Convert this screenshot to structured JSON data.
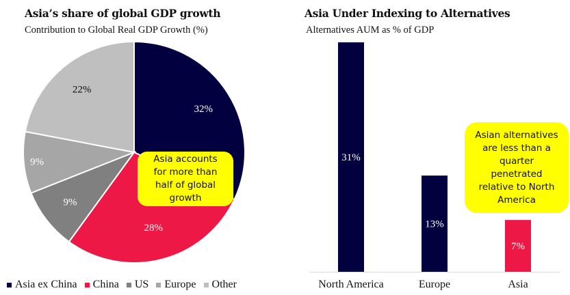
{
  "chart_data": [
    {
      "type": "pie",
      "title": "Asia’s share of global GDP growth",
      "subtitle": "Contribution to Global Real GDP Growth (%)",
      "categories": [
        "Asia ex China",
        "China",
        "US",
        "Europe",
        "Other"
      ],
      "values": [
        32,
        28,
        9,
        9,
        22
      ],
      "labels": [
        "32%",
        "28%",
        "9%",
        "9%",
        "22%"
      ],
      "colors": [
        "#03003f",
        "#ee1846",
        "#808080",
        "#a6a6a6",
        "#bfbfbf"
      ],
      "label_colors": [
        "#ffffff",
        "#ffffff",
        "#ffffff",
        "#ffffff",
        "#111111"
      ],
      "start": "12 o'clock, clockwise",
      "legend": "bottom",
      "annotation": "Asia accounts for more than half of global growth"
    },
    {
      "type": "bar",
      "title": "Asia Under Indexing to Alternatives",
      "subtitle": "Alternatives AUM as % of GDP",
      "categories": [
        "North America",
        "Europe",
        "Asia"
      ],
      "values": [
        31,
        13,
        7
      ],
      "labels": [
        "31%",
        "13%",
        "7%"
      ],
      "colors": [
        "#03003f",
        "#03003f",
        "#ee1846"
      ],
      "ylim": [
        0,
        31
      ],
      "grid": false,
      "annotation": "Asian alternatives are less than a quarter penetrated relative to North America"
    }
  ],
  "callouts": {
    "pie": [
      "Asia accounts",
      "for more than",
      "half of global",
      "growth"
    ],
    "bar": [
      "Asian alternatives",
      "are less than a",
      "quarter",
      "penetrated",
      "relative to North",
      "America"
    ]
  },
  "colors": {
    "callout_bg": "#ffff00",
    "axis": "#d9d9d9"
  }
}
